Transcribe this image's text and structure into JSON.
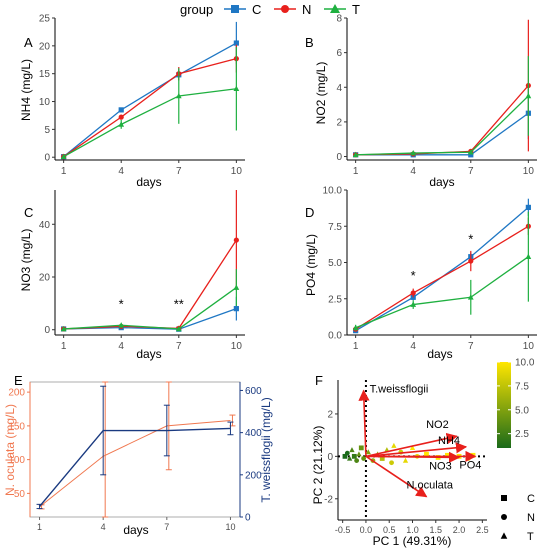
{
  "legend": {
    "title": "group",
    "items": [
      {
        "label": "C",
        "color": "#1f77c4",
        "marker": "square"
      },
      {
        "label": "N",
        "color": "#e8201c",
        "marker": "circle"
      },
      {
        "label": "T",
        "color": "#1fb040",
        "marker": "triangle"
      }
    ]
  },
  "chart_data": [
    {
      "panel": "A",
      "type": "line",
      "xlabel": "days",
      "ylabel": "NH4 (mg/L)",
      "x": [
        1,
        4,
        7,
        10
      ],
      "xticks": [
        1,
        4,
        7,
        10
      ],
      "ylim": [
        -0.5,
        25
      ],
      "yticks": [
        0,
        5,
        10,
        15,
        20,
        25
      ],
      "series": [
        {
          "name": "C",
          "values": [
            0.1,
            8.5,
            14.8,
            20.5
          ],
          "err": [
            0.2,
            0.3,
            1.0,
            3.8
          ]
        },
        {
          "name": "N",
          "values": [
            0.1,
            7.2,
            15.0,
            17.7
          ],
          "err": [
            0.2,
            0.4,
            1.2,
            2.5
          ]
        },
        {
          "name": "T",
          "values": [
            0.1,
            5.9,
            11.0,
            12.3
          ],
          "err": [
            0.2,
            0.8,
            5.0,
            7.5
          ]
        }
      ],
      "annotations": []
    },
    {
      "panel": "B",
      "type": "line",
      "xlabel": "days",
      "ylabel": "NO2 (mg/L)",
      "x": [
        1,
        4,
        7,
        10
      ],
      "xticks": [
        1,
        4,
        7,
        10
      ],
      "ylim": [
        -0.2,
        8
      ],
      "yticks": [
        0,
        2,
        4,
        6,
        8
      ],
      "series": [
        {
          "name": "C",
          "values": [
            0.1,
            0.1,
            0.1,
            2.5
          ],
          "err": [
            0.05,
            0.05,
            0.05,
            1.5
          ]
        },
        {
          "name": "N",
          "values": [
            0.1,
            0.15,
            0.3,
            4.1
          ],
          "err": [
            0.05,
            0.05,
            0.1,
            3.8
          ]
        },
        {
          "name": "T",
          "values": [
            0.1,
            0.2,
            0.25,
            3.5
          ],
          "err": [
            0.05,
            0.05,
            0.1,
            2.3
          ]
        }
      ],
      "annotations": []
    },
    {
      "panel": "C",
      "type": "line",
      "xlabel": "days",
      "ylabel": "NO3 (mg/L)",
      "x": [
        1,
        4,
        7,
        10
      ],
      "xticks": [
        1,
        4,
        7,
        10
      ],
      "ylim": [
        -2,
        53
      ],
      "yticks": [
        0,
        20,
        40
      ],
      "series": [
        {
          "name": "C",
          "values": [
            0.3,
            0.8,
            0.2,
            8.0
          ],
          "err": [
            0.3,
            0.3,
            0.2,
            4.5
          ]
        },
        {
          "name": "N",
          "values": [
            0.3,
            1.3,
            0.5,
            34.0
          ],
          "err": [
            0.3,
            0.4,
            0.2,
            19.0
          ]
        },
        {
          "name": "T",
          "values": [
            0.3,
            1.7,
            0.3,
            16.0
          ],
          "err": [
            0.3,
            0.5,
            0.2,
            7.0
          ]
        }
      ],
      "annotations": [
        {
          "x": 4,
          "y": 8,
          "text": "*"
        },
        {
          "x": 7,
          "y": 8,
          "text": "**"
        }
      ]
    },
    {
      "panel": "D",
      "type": "line",
      "xlabel": "days",
      "ylabel": "PO4 (mg/L)",
      "x": [
        1,
        4,
        7,
        10
      ],
      "xticks": [
        1,
        4,
        7,
        10
      ],
      "ylim": [
        0,
        10
      ],
      "yticks": [
        0.0,
        2.5,
        5.0,
        7.5,
        10.0
      ],
      "series": [
        {
          "name": "C",
          "values": [
            0.3,
            2.6,
            5.4,
            8.8
          ],
          "err": [
            0.15,
            0.2,
            0.3,
            0.6
          ]
        },
        {
          "name": "N",
          "values": [
            0.4,
            2.9,
            5.1,
            7.5
          ],
          "err": [
            0.15,
            0.3,
            0.7,
            0.6
          ]
        },
        {
          "name": "T",
          "values": [
            0.5,
            2.1,
            2.6,
            5.4
          ],
          "err": [
            0.2,
            0.3,
            1.2,
            3.1
          ]
        }
      ],
      "annotations": [
        {
          "x": 4,
          "y": 3.8,
          "text": "*"
        },
        {
          "x": 7,
          "y": 6.3,
          "text": "*"
        }
      ]
    },
    {
      "panel": "E",
      "type": "line",
      "xlabel": "days",
      "ylabel_left": "N. oculata (mg/L)",
      "ylabel_right": "T. weissflogii (mg/L)",
      "left_color": "#f07850",
      "right_color": "#1a3a80",
      "x": [
        1,
        4,
        7,
        10
      ],
      "xticks": [
        1,
        4,
        7,
        10
      ],
      "ylim_left": [
        15,
        215
      ],
      "yticks_left": [
        50,
        100,
        150,
        200
      ],
      "ylim_right": [
        0,
        640
      ],
      "yticks_right": [
        0,
        200,
        400,
        600
      ],
      "series": [
        {
          "name": "N. oculata",
          "axis": "left",
          "values": [
            30,
            105,
            150,
            158
          ],
          "err": [
            3,
            115,
            65,
            8
          ]
        },
        {
          "name": "T. weissflogii",
          "axis": "right",
          "values": [
            50,
            410,
            410,
            420
          ],
          "err": [
            10,
            210,
            120,
            30
          ]
        }
      ]
    },
    {
      "panel": "F",
      "type": "scatter",
      "xlabel": "PC 1 (49.31%)",
      "ylabel": "PC 2 (21.12%)",
      "xlim": [
        -0.6,
        2.6
      ],
      "xticks": [
        -0.5,
        0.0,
        0.5,
        1.0,
        1.5,
        2.0,
        2.5
      ],
      "ylim": [
        -3.0,
        3.6
      ],
      "yticks": [
        -2,
        0,
        2
      ],
      "colorbar": {
        "min": 1,
        "max": 10,
        "ticks": [
          2.5,
          5.0,
          7.5,
          10.0
        ],
        "low_color": "#1a6a1a",
        "high_color": "#ffe600"
      },
      "shape_legend": [
        {
          "label": "C",
          "marker": "square"
        },
        {
          "label": "N",
          "marker": "circle"
        },
        {
          "label": "T",
          "marker": "triangle"
        }
      ],
      "points": [
        {
          "x": -0.45,
          "y": 0.0,
          "v": 1,
          "m": "square"
        },
        {
          "x": -0.4,
          "y": 0.15,
          "v": 1,
          "m": "circle"
        },
        {
          "x": -0.35,
          "y": -0.1,
          "v": 2,
          "m": "triangle"
        },
        {
          "x": -0.3,
          "y": 0.3,
          "v": 3,
          "m": "triangle"
        },
        {
          "x": -0.25,
          "y": 0.0,
          "v": 2,
          "m": "square"
        },
        {
          "x": -0.2,
          "y": -0.2,
          "v": 3,
          "m": "circle"
        },
        {
          "x": -0.15,
          "y": 0.1,
          "v": 4,
          "m": "triangle"
        },
        {
          "x": -0.1,
          "y": 0.4,
          "v": 4,
          "m": "square"
        },
        {
          "x": -0.05,
          "y": -0.1,
          "v": 4,
          "m": "circle"
        },
        {
          "x": 0.05,
          "y": 0.2,
          "v": 5,
          "m": "triangle"
        },
        {
          "x": 0.15,
          "y": -0.2,
          "v": 6,
          "m": "circle"
        },
        {
          "x": 0.25,
          "y": 0.1,
          "v": 6,
          "m": "triangle"
        },
        {
          "x": 0.35,
          "y": -0.1,
          "v": 7,
          "m": "square"
        },
        {
          "x": 0.45,
          "y": 0.3,
          "v": 7,
          "m": "triangle"
        },
        {
          "x": 0.55,
          "y": -0.3,
          "v": 8,
          "m": "circle"
        },
        {
          "x": 0.6,
          "y": 0.5,
          "v": 9,
          "m": "triangle"
        },
        {
          "x": 0.75,
          "y": 0.2,
          "v": 8,
          "m": "circle"
        },
        {
          "x": 0.85,
          "y": -0.2,
          "v": 9,
          "m": "triangle"
        },
        {
          "x": 1.0,
          "y": 0.4,
          "v": 10,
          "m": "triangle"
        },
        {
          "x": 1.1,
          "y": 0.0,
          "v": 9,
          "m": "circle"
        },
        {
          "x": 1.3,
          "y": 0.1,
          "v": 10,
          "m": "square"
        },
        {
          "x": 1.55,
          "y": -0.05,
          "v": 10,
          "m": "square"
        },
        {
          "x": 1.75,
          "y": 0.05,
          "v": 10,
          "m": "square"
        },
        {
          "x": 2.0,
          "y": 0.0,
          "v": 10,
          "m": "square"
        },
        {
          "x": 2.3,
          "y": 0.05,
          "v": 10,
          "m": "square"
        },
        {
          "x": 2.2,
          "y": -0.1,
          "v": 10,
          "m": "circle"
        }
      ],
      "vectors": [
        {
          "label": "T.weissflogii",
          "x": -0.05,
          "y": 3.1
        },
        {
          "label": "NO2",
          "x": 1.95,
          "y": 0.95
        },
        {
          "label": "NH4",
          "x": 2.15,
          "y": 0.45
        },
        {
          "label": "NO3",
          "x": 2.0,
          "y": -0.05
        },
        {
          "label": "PO4",
          "x": 2.35,
          "y": 0.0
        },
        {
          "label": "N.oculata",
          "x": 1.3,
          "y": -1.9
        }
      ]
    }
  ]
}
